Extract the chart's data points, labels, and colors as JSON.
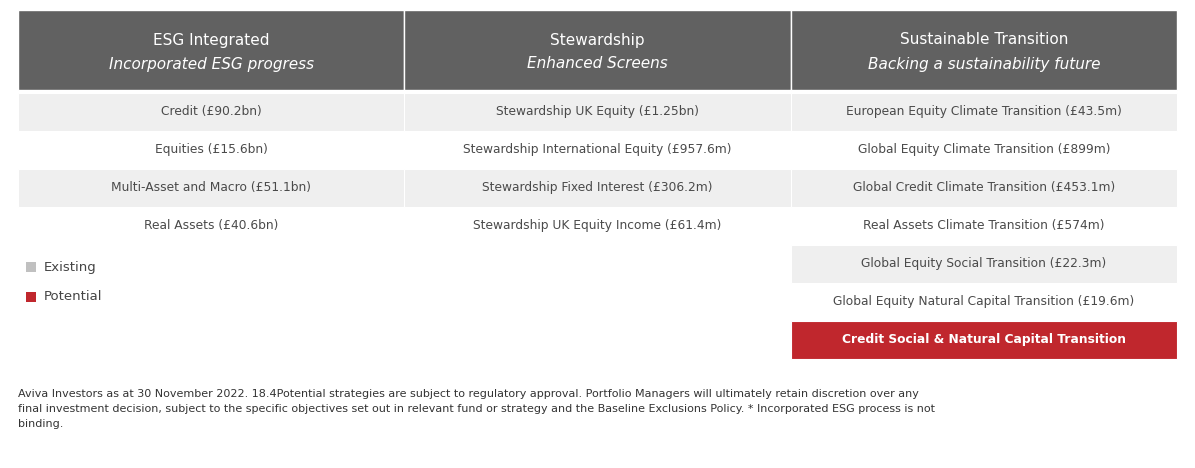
{
  "header_bg": "#616161",
  "header_text_color": "#ffffff",
  "row_bg_light": "#efefef",
  "row_bg_white": "#ffffff",
  "red_color": "#c0272d",
  "footer_text_color": "#333333",
  "col1_header_line1": "ESG Integrated",
  "col1_header_line2": "Incorporated ESG progress",
  "col2_header_line1": "Stewardship",
  "col2_header_line2": "Enhanced Screens",
  "col3_header_line1": "Sustainable Transition",
  "col3_header_line2": "Backing a sustainability future",
  "col1_rows": [
    "Credit (£90.2bn)",
    "Equities (£15.6bn)",
    "Multi-Asset and Macro (£51.1bn)",
    "Real Assets (£40.6bn)"
  ],
  "col2_rows": [
    "Stewardship UK Equity (£1.25bn)",
    "Stewardship International Equity (£957.6m)",
    "Stewardship Fixed Interest (£306.2m)",
    "Stewardship UK Equity Income (£61.4m)"
  ],
  "col3_rows": [
    "European Equity Climate Transition (£43.5m)",
    "Global Equity Climate Transition (£899m)",
    "Global Credit Climate Transition (£453.1m)",
    "Real Assets Climate Transition (£574m)",
    "Global Equity Social Transition (£22.3m)",
    "Global Equity Natural Capital Transition (£19.6m)",
    "Credit Social & Natural Capital Transition"
  ],
  "legend_existing_color": "#c0c0c0",
  "legend_existing_label": "Existing",
  "legend_potential_color": "#c0272d",
  "legend_potential_label": "Potential",
  "footer_text": "Aviva Investors as at 30 November 2022. 18.4Potential strategies are subject to regulatory approval. Portfolio Managers will ultimately retain discretion over any\nfinal investment decision, subject to the specific objectives set out in relevant fund or strategy and the Baseline Exclusions Policy. * Incorporated ESG process is not\nbinding.",
  "figsize": [
    11.95,
    4.68
  ],
  "dpi": 100
}
